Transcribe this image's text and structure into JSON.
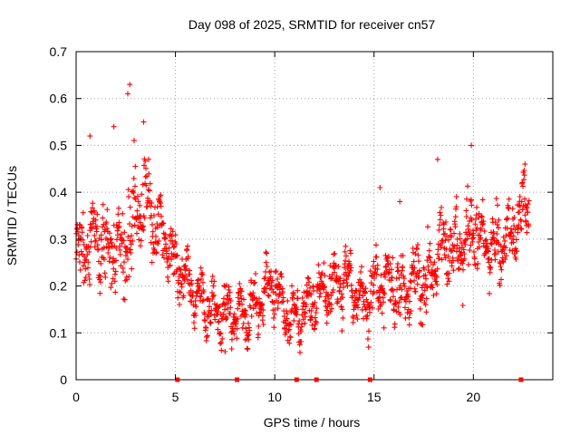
{
  "chart_data": {
    "type": "scatter",
    "title": "Day 098 of 2025, SRMTID for receiver cn57",
    "xlabel": "GPS time / hours",
    "ylabel": "SRMTID / TECUs",
    "xlim": [
      0,
      24
    ],
    "ylim": [
      0,
      0.7
    ],
    "xticks": [
      0,
      5,
      10,
      15,
      20
    ],
    "xtick_labels": [
      "0",
      "5",
      "10",
      "15",
      "20"
    ],
    "yticks": [
      0,
      0.1,
      0.2,
      0.3,
      0.4,
      0.5,
      0.6,
      0.7
    ],
    "ytick_labels": [
      "0",
      "0.1",
      "0.2",
      "0.3",
      "0.4",
      "0.5",
      "0.6",
      "0.7"
    ],
    "grid": true,
    "marker": "plus",
    "color": "#ff0000",
    "series": [
      {
        "name": "SRMTID",
        "trend_x": [
          0,
          0.5,
          1,
          1.5,
          2,
          2.5,
          3,
          3.5,
          4,
          4.5,
          5,
          5.5,
          6,
          6.5,
          7,
          7.5,
          8,
          8.5,
          9,
          9.5,
          10,
          10.5,
          11,
          11.5,
          12,
          12.5,
          13,
          13.5,
          14,
          14.5,
          15,
          15.5,
          16,
          16.5,
          17,
          17.5,
          18,
          18.5,
          19,
          19.5,
          20,
          20.5,
          21,
          21.5,
          22,
          22.5,
          22.8
        ],
        "trend_y": [
          0.27,
          0.28,
          0.31,
          0.28,
          0.27,
          0.28,
          0.36,
          0.38,
          0.33,
          0.3,
          0.24,
          0.22,
          0.18,
          0.16,
          0.15,
          0.14,
          0.15,
          0.13,
          0.15,
          0.19,
          0.2,
          0.15,
          0.13,
          0.15,
          0.18,
          0.19,
          0.2,
          0.22,
          0.2,
          0.16,
          0.19,
          0.22,
          0.2,
          0.18,
          0.22,
          0.2,
          0.26,
          0.29,
          0.28,
          0.29,
          0.33,
          0.29,
          0.28,
          0.29,
          0.32,
          0.37,
          0.36
        ],
        "spread_y": [
          0.05,
          0.06,
          0.07,
          0.06,
          0.06,
          0.09,
          0.09,
          0.07,
          0.05,
          0.04,
          0.05,
          0.04,
          0.04,
          0.04,
          0.04,
          0.04,
          0.04,
          0.04,
          0.04,
          0.04,
          0.04,
          0.04,
          0.04,
          0.04,
          0.04,
          0.04,
          0.04,
          0.04,
          0.04,
          0.04,
          0.05,
          0.06,
          0.05,
          0.05,
          0.05,
          0.06,
          0.07,
          0.06,
          0.05,
          0.06,
          0.07,
          0.05,
          0.05,
          0.05,
          0.05,
          0.05,
          0.05
        ],
        "point_count": 1500,
        "data_gaps": [
          5.1,
          8.1,
          11.1,
          12.1,
          14.8,
          22.4
        ],
        "peaks": [
          {
            "x": 2.7,
            "y": 0.63
          },
          {
            "x": 2.6,
            "y": 0.61
          },
          {
            "x": 3.4,
            "y": 0.55
          },
          {
            "x": 1.9,
            "y": 0.54
          },
          {
            "x": 0.7,
            "y": 0.52
          },
          {
            "x": 19.9,
            "y": 0.5
          },
          {
            "x": 18.2,
            "y": 0.47
          },
          {
            "x": 22.6,
            "y": 0.46
          },
          {
            "x": 15.3,
            "y": 0.41
          },
          {
            "x": 16.3,
            "y": 0.38
          },
          {
            "x": 7.5,
            "y": 0.06
          }
        ]
      }
    ]
  }
}
